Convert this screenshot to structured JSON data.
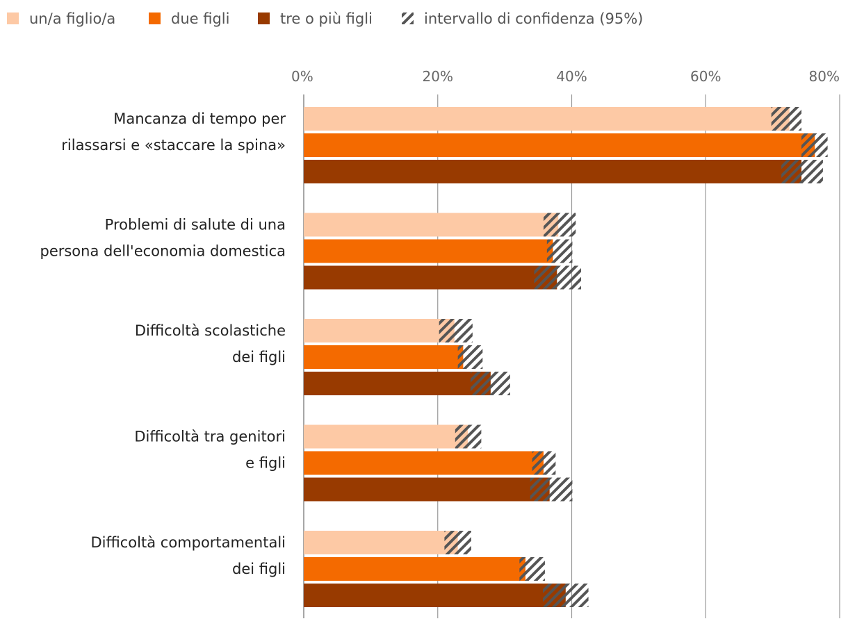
{
  "chart_data": {
    "type": "bar",
    "orientation": "horizontal",
    "title": "",
    "xlabel": "",
    "ylabel": "",
    "xlim": [
      0,
      80
    ],
    "ticks": [
      "0%",
      "20%",
      "40%",
      "60%",
      "80%"
    ],
    "grid": true,
    "legend_position": "top-left",
    "confidence_label": "intervallo di confidenza (95%)",
    "categories": [
      [
        "Mancanza di tempo per",
        "rilassarsi e «staccare la spina»"
      ],
      [
        "Problemi di salute di una",
        "persona dell'economia domestica"
      ],
      [
        "Difficoltà scolastiche",
        "dei figli"
      ],
      [
        "Difficoltà tra genitori",
        "e figli"
      ],
      [
        "Difficoltà comportamentali",
        "dei figli"
      ]
    ],
    "series": [
      {
        "name": "un/a figlio/a",
        "color": "#fdc9a5",
        "values": [
          72.5,
          38.0,
          22.5,
          24.5,
          23.0
        ],
        "ci": [
          [
            69.8,
            74.3
          ],
          [
            35.8,
            40.6
          ],
          [
            20.2,
            25.2
          ],
          [
            22.6,
            26.5
          ],
          [
            21.0,
            25.0
          ]
        ]
      },
      {
        "name": "due figli",
        "color": "#f46a00",
        "values": [
          76.3,
          37.2,
          23.8,
          35.8,
          33.1
        ],
        "ci": [
          [
            74.3,
            78.2
          ],
          [
            36.3,
            40.1
          ],
          [
            23.0,
            26.7
          ],
          [
            34.1,
            37.6
          ],
          [
            32.2,
            36.0
          ]
        ]
      },
      {
        "name": "tre o più figli",
        "color": "#983a00",
        "values": [
          74.3,
          37.8,
          27.9,
          36.7,
          39.1
        ],
        "ci": [
          [
            71.3,
            77.5
          ],
          [
            34.4,
            41.4
          ],
          [
            24.9,
            30.8
          ],
          [
            33.8,
            40.1
          ],
          [
            35.7,
            42.5
          ]
        ]
      }
    ]
  }
}
